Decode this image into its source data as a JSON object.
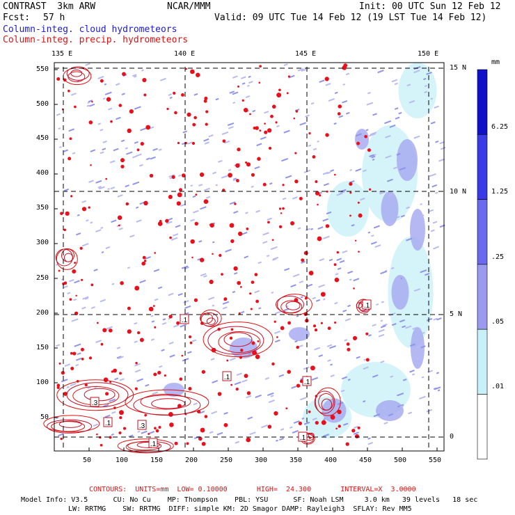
{
  "header": {
    "model": "CONTRAST  3km ARW",
    "forecast_label": "Fcst:",
    "forecast_value": "57 h",
    "institution": "NCAR/MMM",
    "init": "Init: 00 UTC Sun 12 Feb 12",
    "valid": "Valid: 09 UTC Tue 14 Feb 12 (19 LST Tue 14 Feb 12)",
    "legend_cloud": "Column-integ. cloud hydrometeors",
    "legend_precip": "Column-integ. precip. hydrometeors"
  },
  "axes": {
    "lon_labels": [
      "135 E",
      "140 E",
      "145 E",
      "150 E"
    ],
    "lat_labels": [
      "15 N",
      "10 N",
      "5 N",
      "0"
    ],
    "x_ticks": [
      "50",
      "100",
      "150",
      "200",
      "250",
      "300",
      "350",
      "400",
      "450",
      "500",
      "550"
    ],
    "y_ticks": [
      "550",
      "500",
      "450",
      "400",
      "350",
      "300",
      "250",
      "200",
      "150",
      "100",
      "50"
    ]
  },
  "colorbar": {
    "unit": "mm",
    "labels": [
      "6.25",
      "1.25",
      ".25",
      ".05",
      ".01"
    ],
    "colors": [
      "#1010c8",
      "#3a3ae6",
      "#6a6aee",
      "#9a9aee",
      "#c8f0f8",
      "#ffffff"
    ]
  },
  "contour_labels": [
    ".1",
    ".1",
    ".1",
    ".1",
    ".1",
    ".3",
    ".1",
    ".3",
    ".1"
  ],
  "footer": {
    "contours": "CONTOURS:  UNITS=mm  LOW= 0.10000       HIGH=  24.300       INTERVAL=X  3.0000",
    "model_info_1": "Model Info: V3.5      CU: No Cu    MP: Thompson    PBL: YSU      SF: Noah LSM     3.0 km   39 levels   18 sec",
    "model_info_2": "LW: RRTMG    SW: RRTMG  DIFF: simple KM: 2D Smagor DAMP: Rayleigh3  SFLAY: Rev MM5"
  }
}
